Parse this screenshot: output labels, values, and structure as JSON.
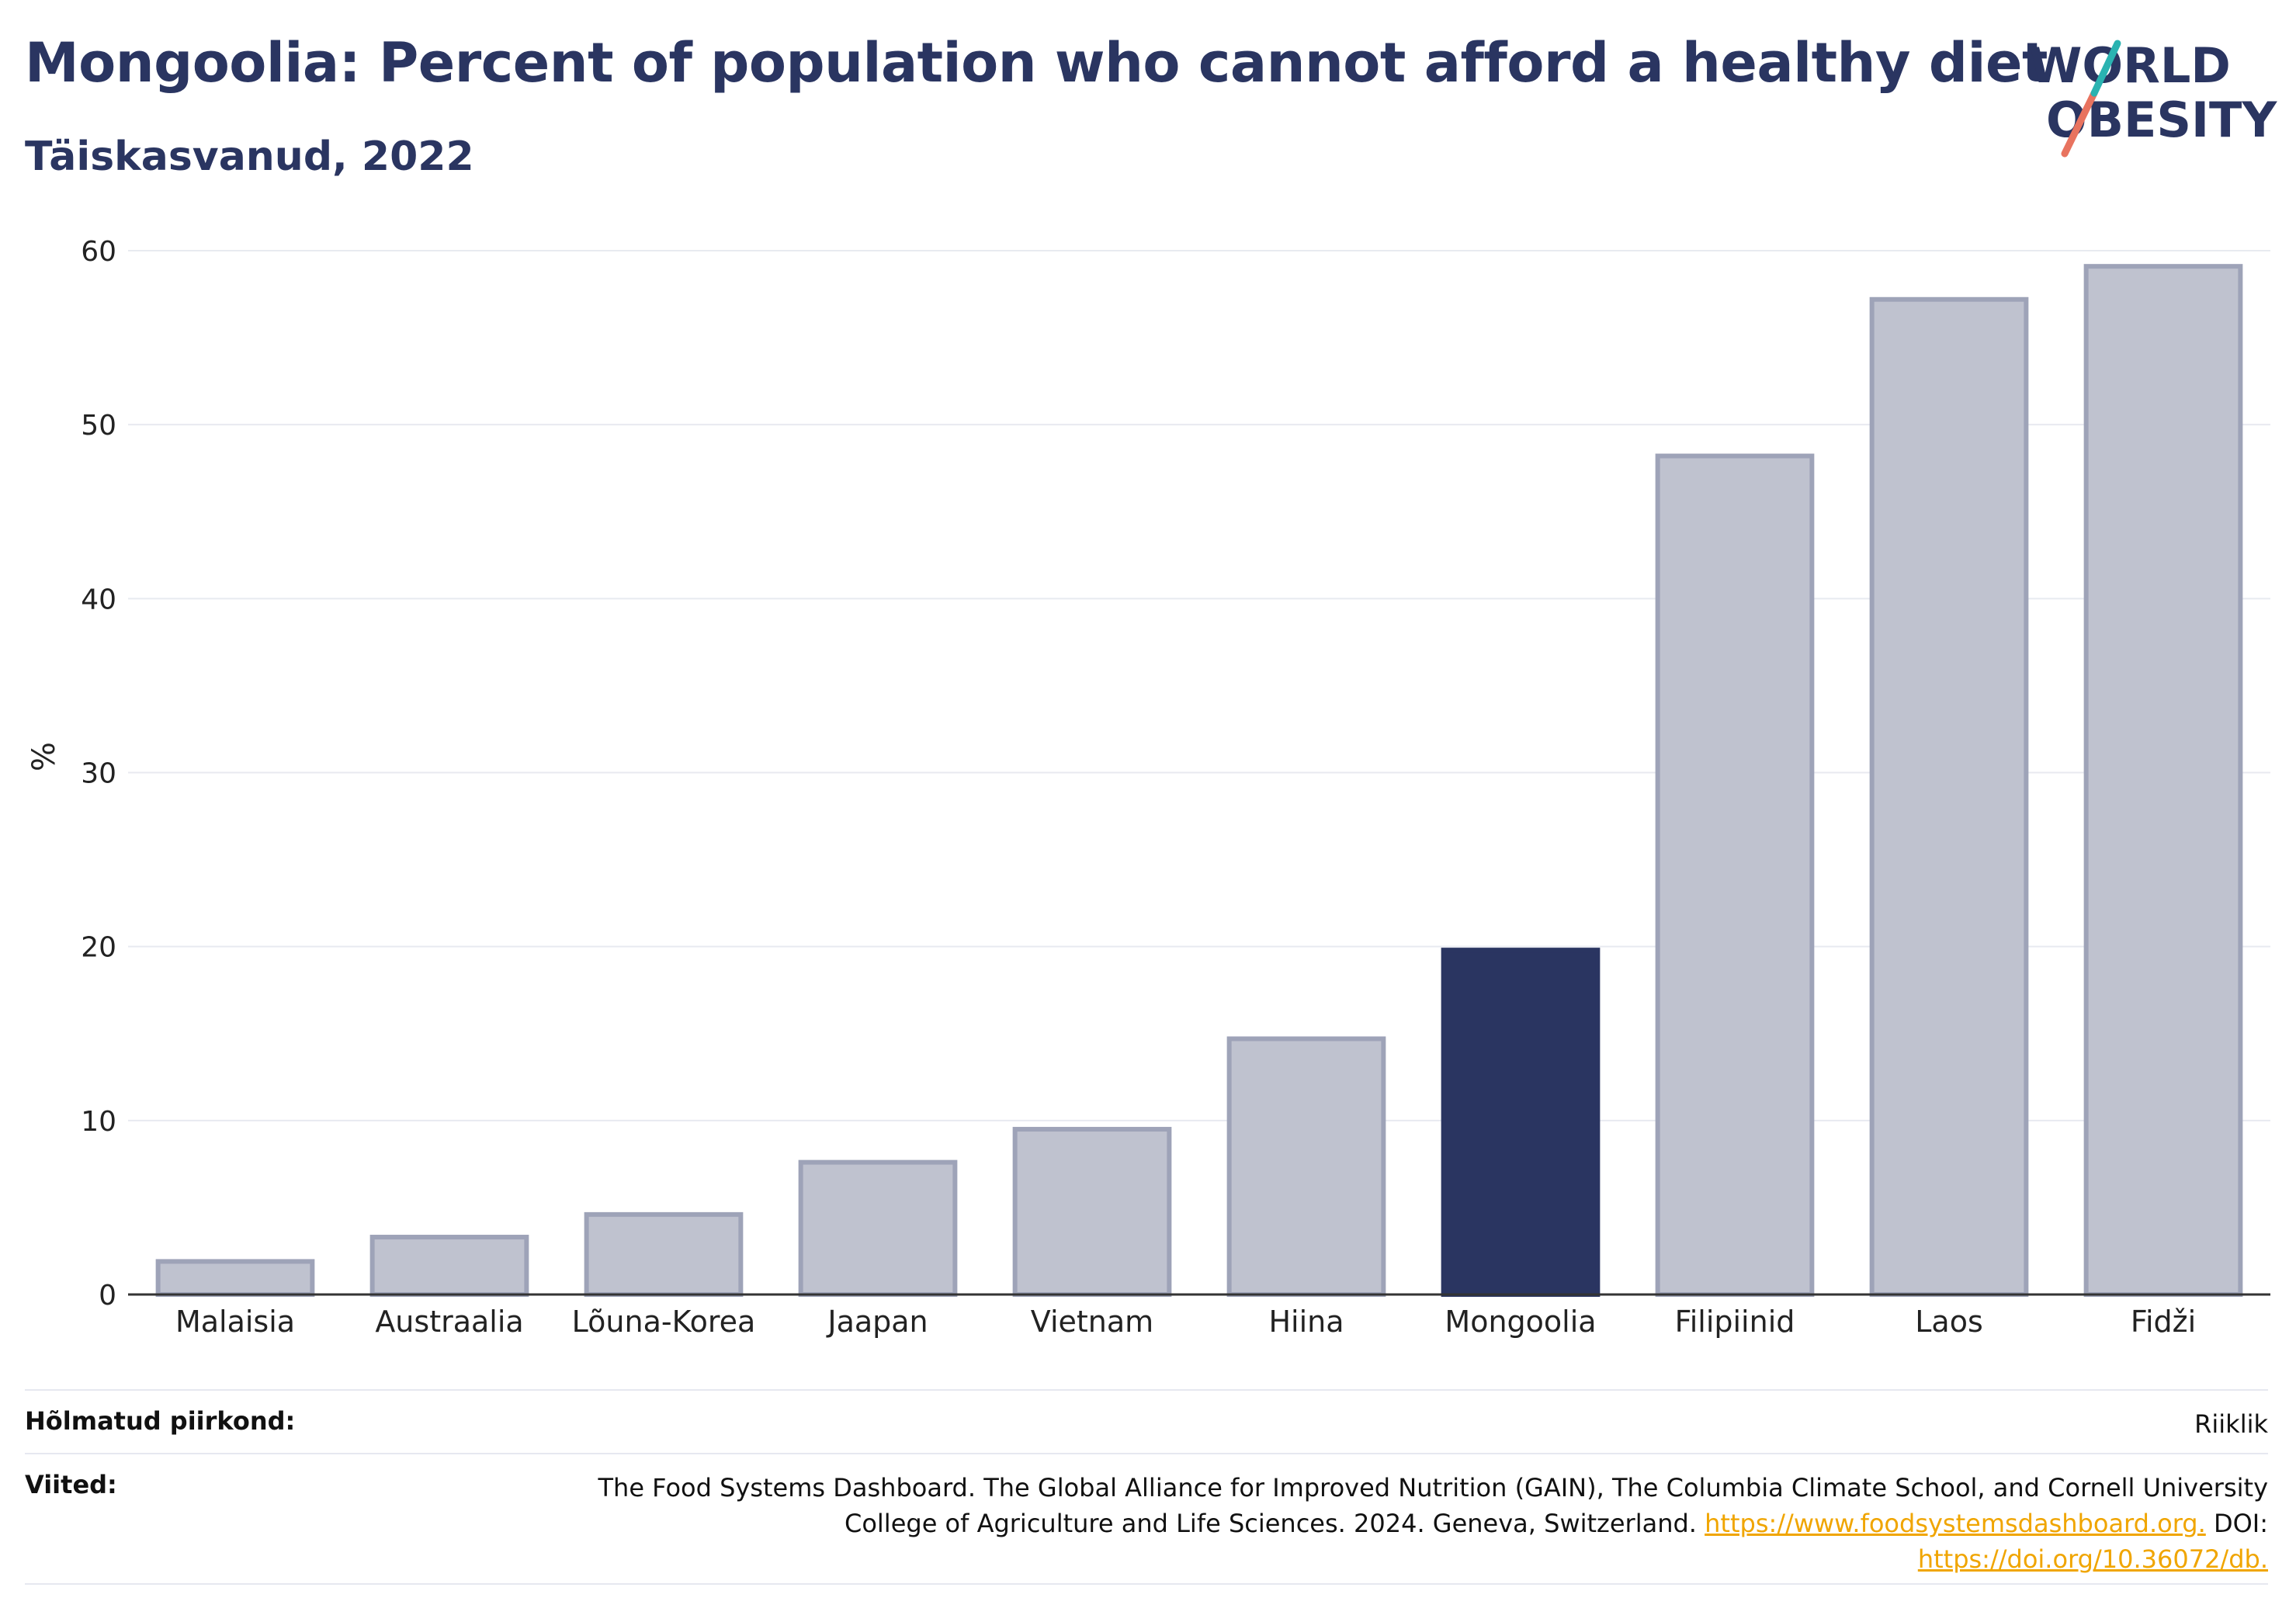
{
  "header": {
    "title": "Mongoolia: Percent of population who cannot afford a healthy diet",
    "subtitle": "Täiskasvanud, 2022"
  },
  "logo": {
    "line1": "WORLD",
    "line2": "OBESITY"
  },
  "colors": {
    "highlight": "#2a3561",
    "bar_fill": "#bfc2cf",
    "bar_stroke": "#9ea3b8",
    "accent_teal": "#2ab3b1",
    "accent_coral": "#e8735f",
    "link": "#f0a500"
  },
  "chart_data": {
    "type": "bar",
    "title": "Mongoolia: Percent of population who cannot afford a healthy diet",
    "subtitle": "Täiskasvanud, 2022",
    "xlabel": "",
    "ylabel": "%",
    "ylim": [
      0,
      60
    ],
    "yticks": [
      0,
      10,
      20,
      30,
      40,
      50,
      60
    ],
    "grid": true,
    "categories": [
      "Malaisia",
      "Austraalia",
      "Lõuna-Korea",
      "Jaapan",
      "Vietnam",
      "Hiina",
      "Mongoolia",
      "Filipiinid",
      "Laos",
      "Fidži"
    ],
    "values": [
      1.9,
      3.3,
      4.6,
      7.6,
      9.5,
      14.7,
      19.8,
      48.2,
      57.2,
      59.1
    ],
    "highlight": "Mongoolia"
  },
  "footer": {
    "coverage_label": "Hõlmatud piirkond:",
    "coverage_value": "Riiklik",
    "refs_label": "Viited:",
    "refs_line1": "The Food Systems Dashboard. The Global Alliance for Improved Nutrition (GAIN), The Columbia Climate School, and Cornell University",
    "refs_line2_text": "College of Agriculture and Life Sciences. 2024. Geneva, Switzerland.",
    "refs_link1": "https://www.foodsystemsdashboard.org.",
    "refs_doi_label": "DOI:",
    "refs_link2": "https://doi.org/10.36072/db."
  }
}
